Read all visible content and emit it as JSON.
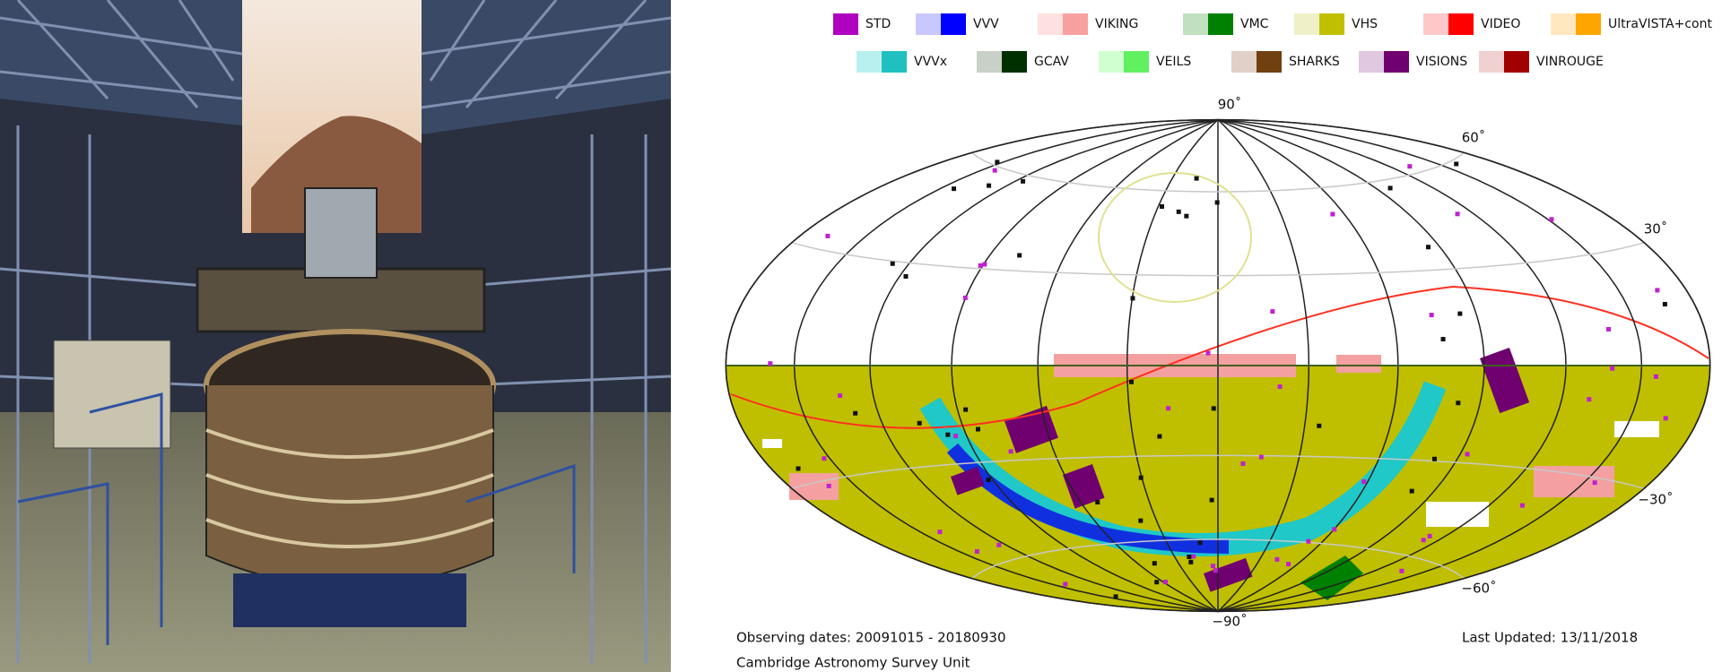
{
  "legend": [
    {
      "name": "STD",
      "colors": [
        "#b000c0"
      ]
    },
    {
      "name": "VVV",
      "colors": [
        "#c8c8ff",
        "#0000ff"
      ]
    },
    {
      "name": "VIKING",
      "colors": [
        "#ffe0e0",
        "#f8a0a0"
      ]
    },
    {
      "name": "VMC",
      "colors": [
        "#c0e0c0",
        "#008000"
      ]
    },
    {
      "name": "VHS",
      "colors": [
        "#f0f0c8",
        "#c0c000"
      ]
    },
    {
      "name": "VIDEO",
      "colors": [
        "#ffc8c8",
        "#ff0000"
      ]
    },
    {
      "name": "UltraVISTA+cont",
      "colors": [
        "#ffe8c0",
        "#ffa500"
      ]
    },
    {
      "name": "VVVx",
      "colors": [
        "#b8f0f0",
        "#20c0c0"
      ]
    },
    {
      "name": "GCAV",
      "colors": [
        "#c8d0c8",
        "#003000"
      ]
    },
    {
      "name": "VEILS",
      "colors": [
        "#d0ffd0",
        "#60f060"
      ]
    },
    {
      "name": "SHARKS",
      "colors": [
        "#e0d0c8",
        "#704010"
      ]
    },
    {
      "name": "VISIONS",
      "colors": [
        "#e0c8e0",
        "#700070"
      ]
    },
    {
      "name": "VINROUGE",
      "colors": [
        "#f0d0d0",
        "#a00000"
      ]
    }
  ],
  "map": {
    "latitude_labels": [
      "90˚",
      "60˚",
      "30˚",
      "−30˚",
      "−60˚",
      "−90˚"
    ],
    "observing_dates": "Observing dates: 20091015 - 20180930",
    "credit": "Cambridge Astronomy Survey Unit",
    "updated": "Last Updated: 13/11/2018"
  }
}
